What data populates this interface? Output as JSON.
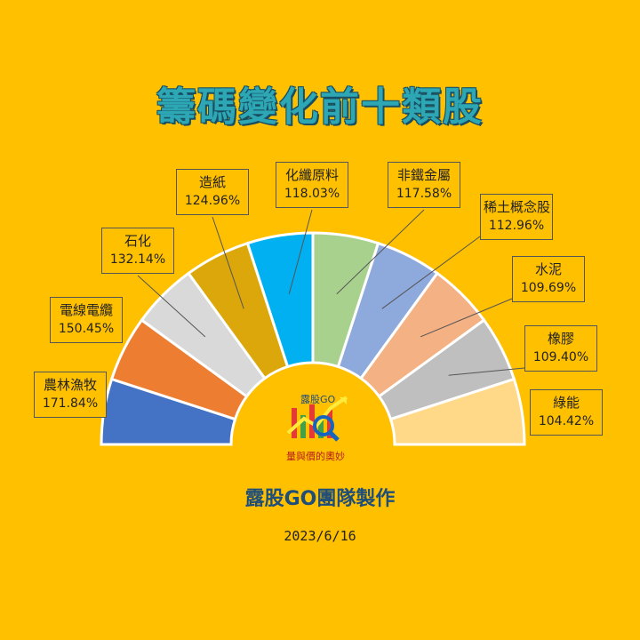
{
  "title": "籌碼變化前十類股",
  "credit": "露股GO團隊製作",
  "date": "2023/6/16",
  "logo": {
    "top_text": "露股GO",
    "bottom_text": "量與價的奧妙"
  },
  "chart_data": {
    "type": "pie",
    "subtype": "half-donut",
    "title": "籌碼變化前十類股",
    "categories": [
      "農林漁牧",
      "電線電纜",
      "石化",
      "造紙",
      "化纖原料",
      "非鐵金屬",
      "稀土概念股",
      "水泥",
      "橡膠",
      "綠能"
    ],
    "values": [
      171.84,
      150.45,
      132.14,
      124.96,
      118.03,
      117.58,
      112.96,
      109.69,
      109.4,
      104.42
    ],
    "value_labels": [
      "171.84%",
      "150.45%",
      "132.14%",
      "124.96%",
      "118.03%",
      "117.58%",
      "112.96%",
      "109.69%",
      "109.40%",
      "104.42%"
    ],
    "colors": [
      "#4472C4",
      "#ED7D31",
      "#D9D9D9",
      "#DBA70A",
      "#00B0F0",
      "#A9D18E",
      "#8EA9DB",
      "#F4B183",
      "#BFBFBF",
      "#FFD888"
    ]
  }
}
